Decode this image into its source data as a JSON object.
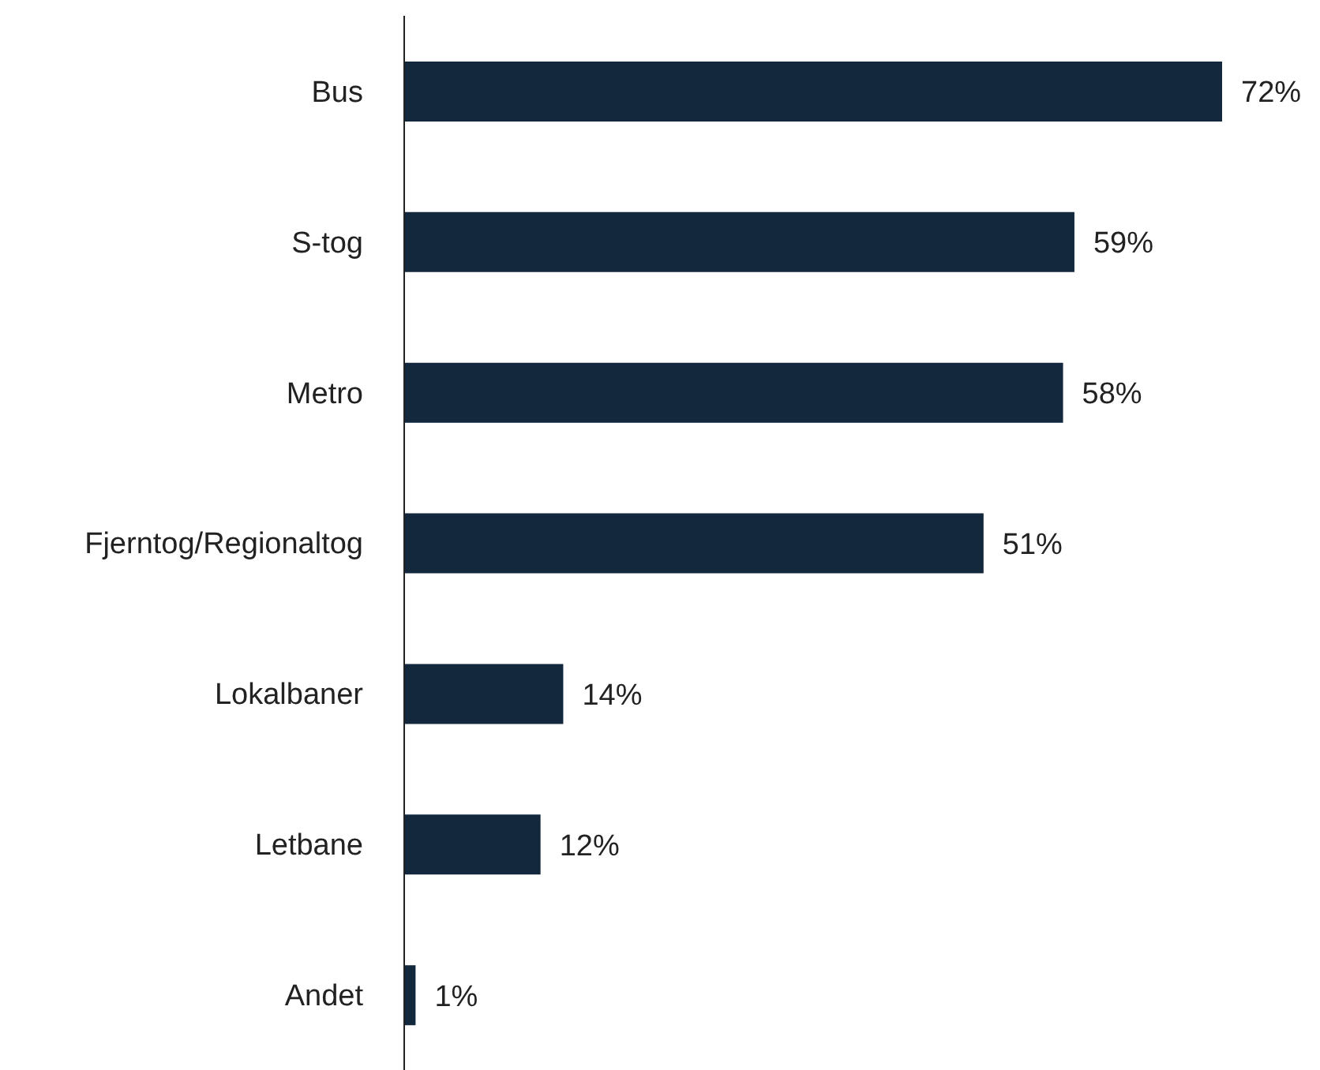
{
  "chart_data": {
    "type": "bar",
    "orientation": "horizontal",
    "categories": [
      "Bus",
      "S-tog",
      "Metro",
      "Fjerntog/Regionaltog",
      "Lokalbaner",
      "Letbane",
      "Andet"
    ],
    "values": [
      72,
      59,
      58,
      51,
      14,
      12,
      1
    ],
    "value_labels": [
      "72%",
      "59%",
      "58%",
      "51%",
      "14%",
      "12%",
      "1%"
    ],
    "color": "#13273d"
  }
}
